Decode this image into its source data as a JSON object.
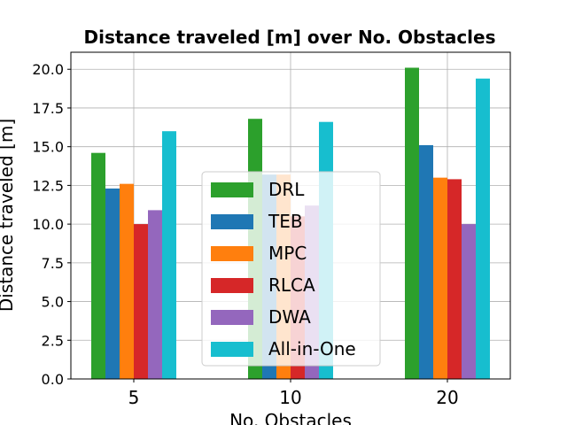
{
  "chart_data": {
    "type": "bar",
    "title": "Distance traveled [m] over No. Obstacles",
    "xlabel": "No. Obstacles",
    "ylabel": "Distance traveled [m]",
    "categories": [
      "5",
      "10",
      "20"
    ],
    "ylim": [
      0,
      21.1
    ],
    "yticks": [
      "0.0",
      "2.5",
      "5.0",
      "7.5",
      "10.0",
      "12.5",
      "15.0",
      "17.5",
      "20.0"
    ],
    "grid": true,
    "legend_position": "center-bottom",
    "series": [
      {
        "name": "DRL",
        "color": "#2ca02c",
        "values": [
          14.6,
          16.8,
          20.1
        ]
      },
      {
        "name": "TEB",
        "color": "#1f77b4",
        "values": [
          12.3,
          13.2,
          15.1
        ]
      },
      {
        "name": "MPC",
        "color": "#ff7f0e",
        "values": [
          12.6,
          13.2,
          13.0
        ]
      },
      {
        "name": "RLCA",
        "color": "#d62728",
        "values": [
          10.0,
          10.5,
          12.9
        ]
      },
      {
        "name": "DWA",
        "color": "#9467bd",
        "values": [
          10.9,
          11.2,
          10.0
        ]
      },
      {
        "name": "All-in-One",
        "color": "#17becf",
        "values": [
          16.0,
          16.6,
          19.4
        ]
      }
    ]
  }
}
